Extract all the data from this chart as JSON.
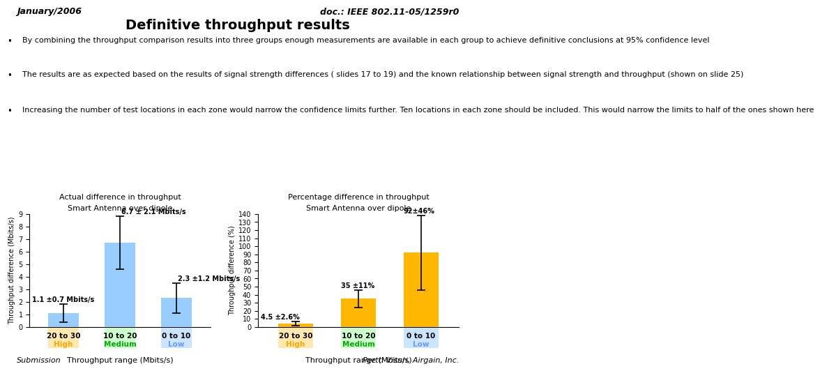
{
  "header_left": "January/2006",
  "header_right": "doc.: IEEE 802.11-05/1259r0",
  "title": "Definitive throughput results",
  "bullets": [
    "By combining the throughput comparison results into three groups enough measurements are available in each group to achieve definitive conclusions at 95% confidence level",
    "The results are as expected based on the results of signal strength differences ( slides 17 to 19) and the known relationship between signal strength and throughput (shown on slide 25)",
    "Increasing the number of test locations in each zone would narrow the confidence limits further. Ten locations in each zone should be included. This would narrow the limits to half of the ones shown here"
  ],
  "chart1": {
    "title_line1": "Actual difference in throughput",
    "title_line2": "Smart Antenna over dipole",
    "ylabel": "Throughput difference (Mbits/s)",
    "xlabel": "Throughput range (Mbits/s)",
    "categories": [
      "20 to 30",
      "10 to 20",
      "0 to 10"
    ],
    "cat_labels": [
      "High",
      "Medium",
      "Low"
    ],
    "cat_colors": [
      "#FFA500",
      "#00AA00",
      "#6699FF"
    ],
    "cat_bg_colors": [
      "#FFE8B0",
      "#CCFFCC",
      "#CCE5FF"
    ],
    "values": [
      1.1,
      6.7,
      2.3
    ],
    "errors": [
      0.7,
      2.1,
      1.2
    ],
    "bar_color": "#99CCFF",
    "ylim": [
      0,
      9
    ],
    "yticks": [
      0,
      1,
      2,
      3,
      4,
      5,
      6,
      7,
      8,
      9
    ],
    "annotations": [
      "1.1 ±0.7 Mbits/s",
      "6.7 ± 2.1 Mbits/s",
      "2.3 ±1.2 Mbits/s"
    ]
  },
  "chart2": {
    "title_line1": "Percentage difference in throughput",
    "title_line2": "Smart Antenna over dipole",
    "ylabel": "Throughput difference (%)",
    "xlabel": "Throughput range (Mbits/s)",
    "categories": [
      "20 to 30",
      "10 to 20",
      "0 to 10"
    ],
    "cat_labels": [
      "High",
      "Medium",
      "Low"
    ],
    "cat_colors": [
      "#FFA500",
      "#00AA00",
      "#6699FF"
    ],
    "cat_bg_colors": [
      "#FFE8B0",
      "#CCFFCC",
      "#CCE5FF"
    ],
    "values": [
      4.5,
      35,
      92
    ],
    "errors": [
      2.6,
      11,
      46
    ],
    "bar_color": "#FFB700",
    "ylim": [
      0,
      140
    ],
    "yticks": [
      0,
      10,
      20,
      30,
      40,
      50,
      60,
      70,
      80,
      90,
      100,
      110,
      120,
      130,
      140
    ],
    "annotations": [
      "4.5 ±2.6%",
      "35 ±11%",
      "92±46%"
    ]
  },
  "footer_left": "Submission",
  "footer_right": "Pertti Visuri, Airgain, Inc."
}
